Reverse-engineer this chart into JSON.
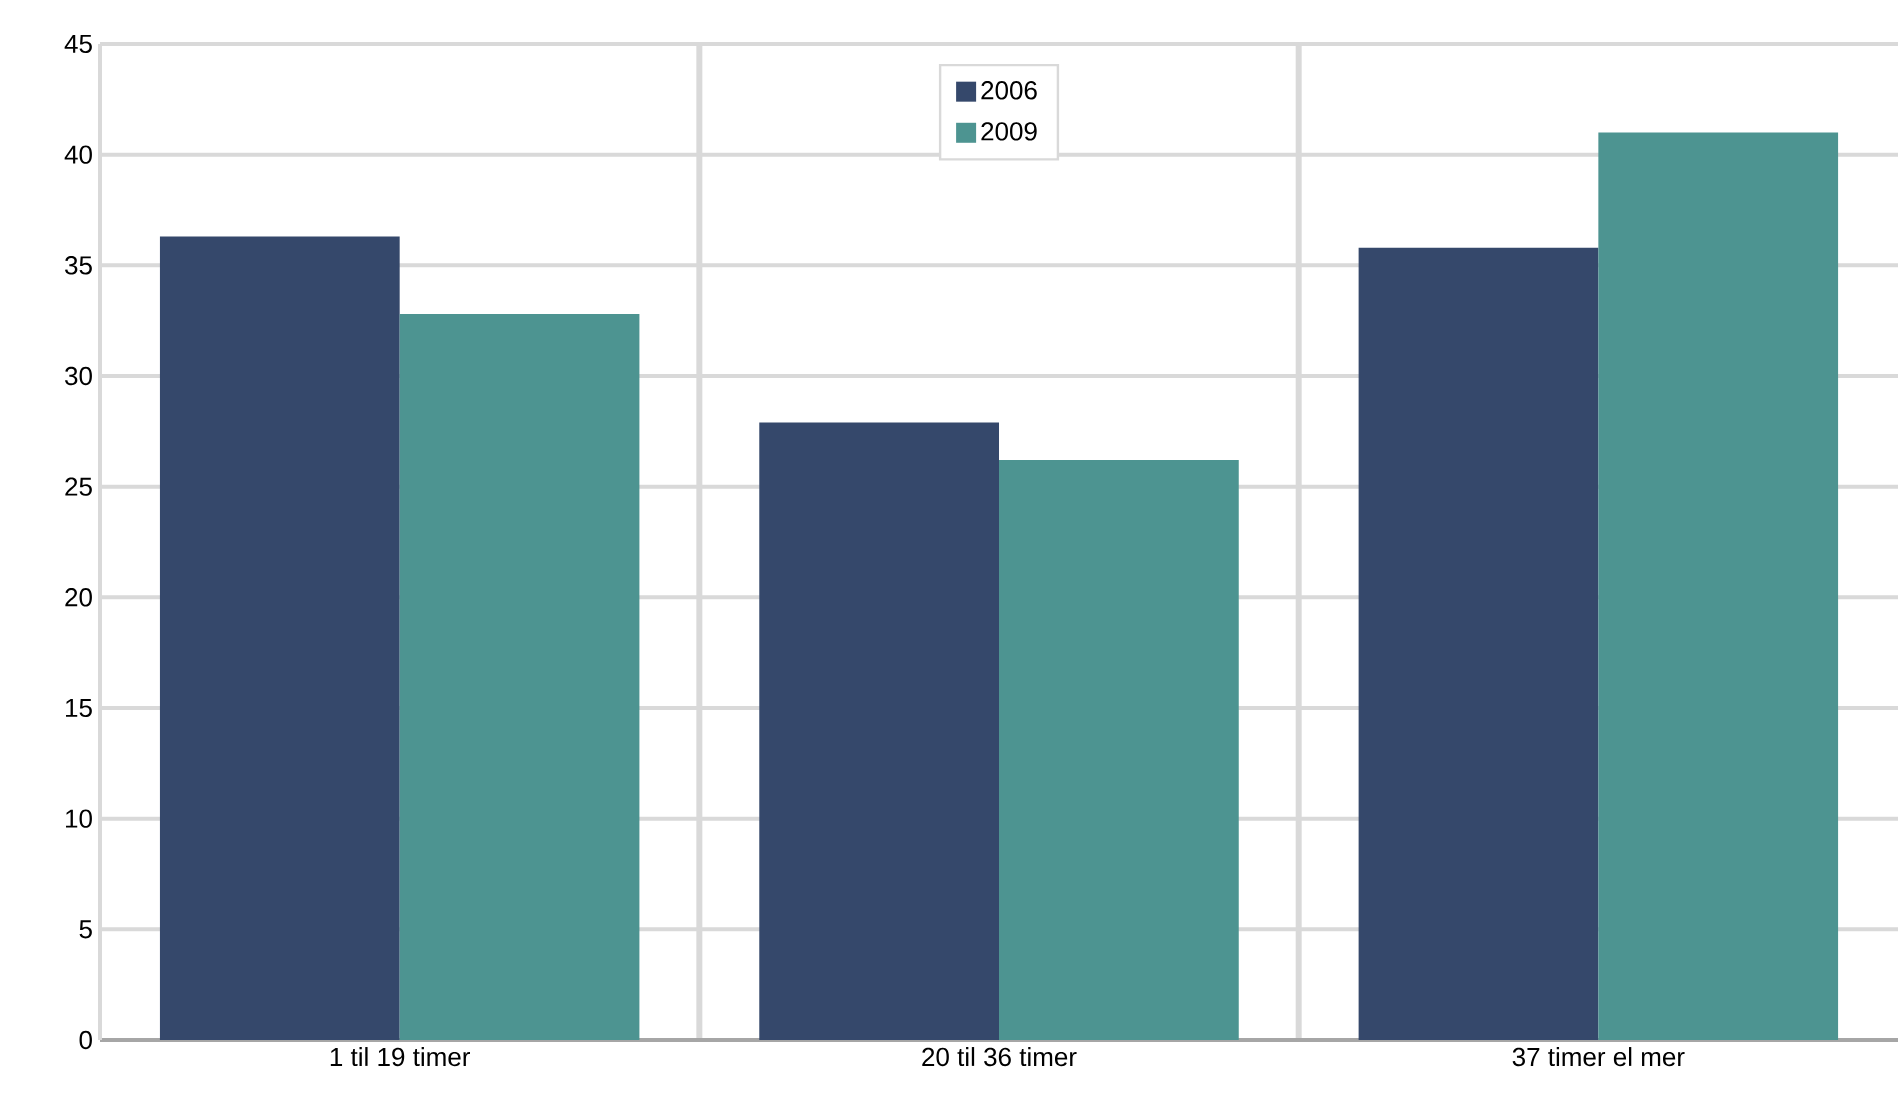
{
  "chart_data": {
    "type": "bar",
    "categories": [
      "1 til 19 timer",
      "20 til 36 timer",
      "37 timer el mer"
    ],
    "series": [
      {
        "name": "2006",
        "color": "#35486b",
        "values": [
          36.3,
          27.9,
          35.8
        ]
      },
      {
        "name": "2009",
        "color": "#4d9491",
        "values": [
          32.8,
          26.2,
          41.0
        ]
      }
    ],
    "ylim": [
      0,
      45
    ],
    "yticks": [
      0,
      5,
      10,
      15,
      20,
      25,
      30,
      35,
      40,
      45
    ],
    "grid": true,
    "legend": "top"
  }
}
